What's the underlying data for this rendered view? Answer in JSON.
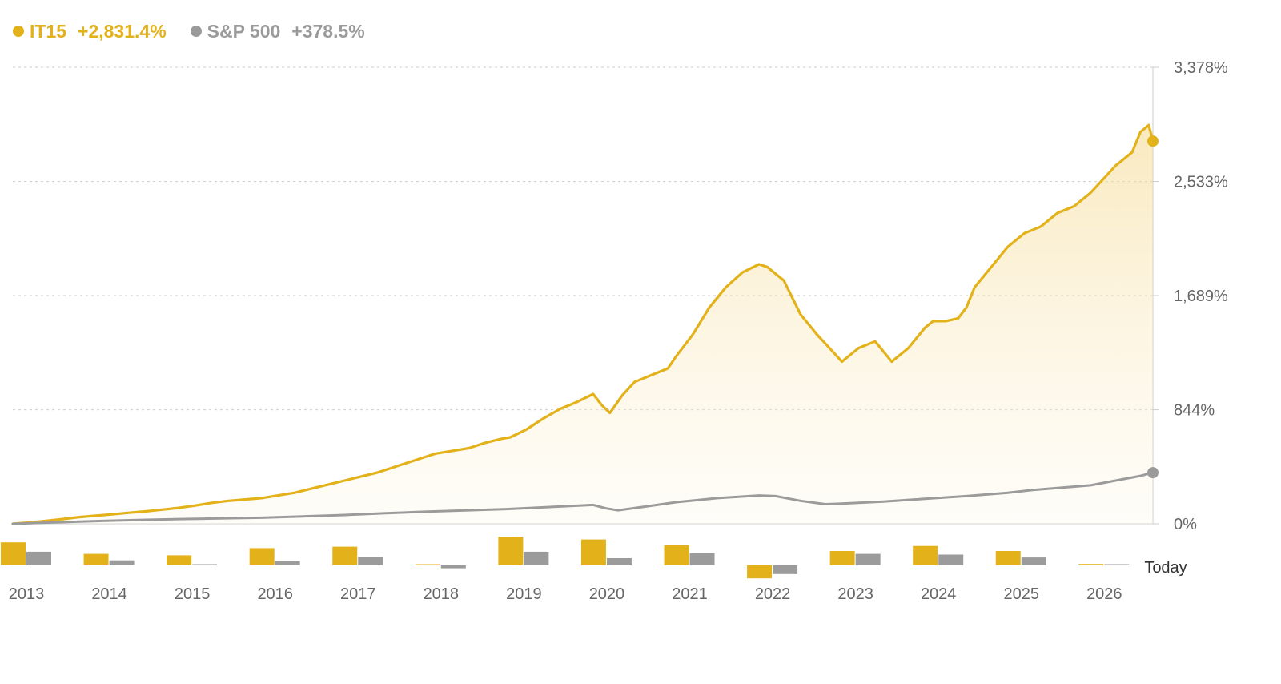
{
  "legend": {
    "primary": {
      "name": "IT15",
      "change": "+2,831.4%",
      "color": "#e3b21b"
    },
    "benchmark": {
      "name": "S&P 500",
      "change": "+378.5%",
      "color": "#9b9b9b"
    }
  },
  "chart_data": {
    "type": "line",
    "y_ticks": [
      {
        "value": 3378,
        "label": "3,378%"
      },
      {
        "value": 2533,
        "label": "2,533%"
      },
      {
        "value": 1689,
        "label": "1,689%"
      },
      {
        "value": 844,
        "label": "844%"
      },
      {
        "value": 0,
        "label": "0%"
      }
    ],
    "ylim": [
      0,
      3378
    ],
    "xlim": [
      2013.0,
      2026.75
    ],
    "grid": true,
    "legend_position": "top-left",
    "area_fill": "IT15",
    "series": [
      {
        "name": "IT15",
        "color": "#e3b21b",
        "x": [
          2013.0,
          2013.2,
          2013.4,
          2013.6,
          2013.8,
          2014.0,
          2014.2,
          2014.4,
          2014.6,
          2014.8,
          2015.0,
          2015.2,
          2015.4,
          2015.6,
          2015.8,
          2016.0,
          2016.2,
          2016.4,
          2016.6,
          2016.8,
          2017.0,
          2017.2,
          2017.4,
          2017.6,
          2017.8,
          2018.0,
          2018.1,
          2018.3,
          2018.5,
          2018.7,
          2018.9,
          2019.0,
          2019.2,
          2019.4,
          2019.6,
          2019.8,
          2020.0,
          2020.1,
          2020.2,
          2020.35,
          2020.5,
          2020.7,
          2020.9,
          2021.0,
          2021.2,
          2021.4,
          2021.6,
          2021.8,
          2022.0,
          2022.1,
          2022.3,
          2022.5,
          2022.7,
          2022.85,
          2023.0,
          2023.2,
          2023.4,
          2023.6,
          2023.8,
          2024.0,
          2024.1,
          2024.25,
          2024.4,
          2024.5,
          2024.6,
          2024.8,
          2025.0,
          2025.2,
          2025.4,
          2025.6,
          2025.8,
          2026.0,
          2026.15,
          2026.3,
          2026.5,
          2026.6,
          2026.7,
          2026.75
        ],
        "y": [
          0,
          10,
          22,
          35,
          50,
          60,
          70,
          82,
          92,
          105,
          118,
          135,
          155,
          170,
          180,
          190,
          210,
          230,
          260,
          290,
          320,
          350,
          380,
          420,
          460,
          500,
          520,
          540,
          560,
          600,
          630,
          640,
          700,
          780,
          850,
          900,
          960,
          880,
          820,
          950,
          1050,
          1100,
          1150,
          1240,
          1400,
          1600,
          1750,
          1860,
          1920,
          1900,
          1800,
          1550,
          1400,
          1300,
          1200,
          1300,
          1350,
          1200,
          1300,
          1450,
          1500,
          1500,
          1520,
          1600,
          1750,
          1900,
          2050,
          2150,
          2200,
          2300,
          2350,
          2450,
          2550,
          2650,
          2750,
          2900,
          2950,
          2831.4
        ]
      },
      {
        "name": "S&P 500",
        "color": "#9b9b9b",
        "x": [
          2013.0,
          2013.5,
          2014.0,
          2014.5,
          2015.0,
          2015.5,
          2016.0,
          2016.5,
          2017.0,
          2017.5,
          2018.0,
          2018.5,
          2019.0,
          2019.5,
          2020.0,
          2020.15,
          2020.3,
          2020.6,
          2021.0,
          2021.5,
          2022.0,
          2022.2,
          2022.5,
          2022.8,
          2023.0,
          2023.5,
          2024.0,
          2024.5,
          2025.0,
          2025.3,
          2025.6,
          2026.0,
          2026.3,
          2026.6,
          2026.75
        ],
        "y": [
          0,
          10,
          20,
          28,
          35,
          40,
          45,
          55,
          65,
          78,
          90,
          100,
          110,
          125,
          140,
          115,
          100,
          125,
          160,
          190,
          210,
          205,
          170,
          145,
          150,
          165,
          185,
          205,
          230,
          250,
          265,
          285,
          320,
          355,
          378.5
        ]
      }
    ],
    "annual_bars": {
      "today_label": "Today",
      "years": [
        "2013",
        "2014",
        "2015",
        "2016",
        "2017",
        "2018",
        "2019",
        "2020",
        "2021",
        "2022",
        "2023",
        "2024",
        "2025",
        "2026"
      ],
      "IT15": [
        32,
        16,
        14,
        24,
        26,
        1,
        40,
        36,
        28,
        -18,
        20,
        27,
        20,
        2
      ],
      "S&P 500": [
        19,
        7,
        1,
        6,
        12,
        -4,
        19,
        10,
        17,
        -12,
        16,
        15,
        11,
        1
      ]
    }
  }
}
